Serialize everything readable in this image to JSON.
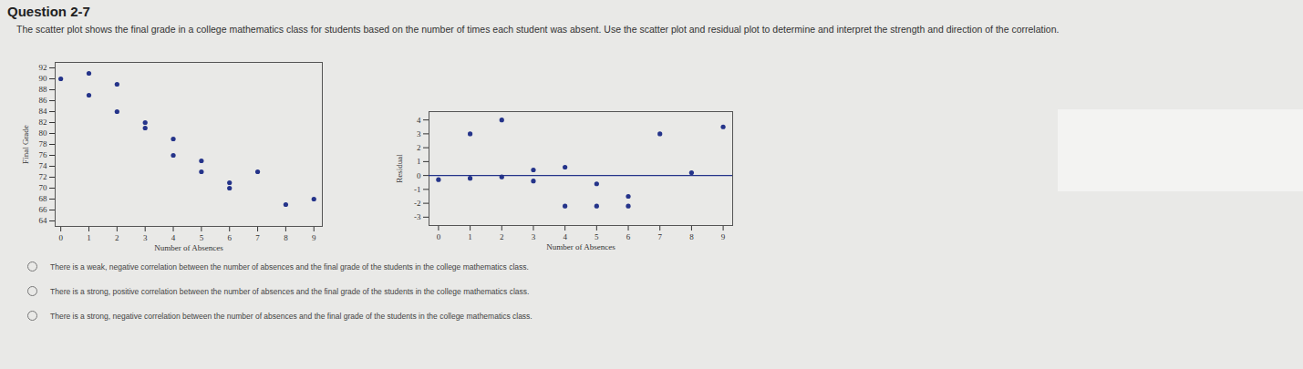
{
  "header": {
    "title": "Question 2-7"
  },
  "question": "The scatter plot shows the final grade in a college mathematics class for students based on the number of times each student was absent. Use the scatter plot and residual plot to determine and interpret the strength and direction of the correlation.",
  "chart_data": [
    {
      "type": "scatter",
      "x_label": "Number of Absences",
      "y_label": "Final Grade",
      "x": [
        0,
        1,
        1,
        2,
        2,
        3,
        3,
        4,
        4,
        5,
        5,
        6,
        6,
        7,
        8,
        9
      ],
      "values": [
        90,
        91,
        87,
        89,
        84,
        82,
        81,
        79,
        76,
        75,
        73,
        71,
        70,
        73,
        67,
        68
      ],
      "color": "#25348a",
      "marker": "circle",
      "xlim": [
        -0.2,
        9.3
      ],
      "ylim": [
        63,
        93
      ],
      "xticks": [
        0,
        1,
        2,
        3,
        4,
        5,
        6,
        7,
        8,
        9
      ],
      "yticks": [
        64,
        66,
        68,
        70,
        72,
        74,
        76,
        78,
        80,
        82,
        84,
        86,
        88,
        90,
        92
      ],
      "grid": false
    },
    {
      "type": "scatter",
      "x_label": "Number of Absences",
      "y_label": "Residual",
      "x": [
        0,
        1,
        1,
        2,
        2,
        3,
        3,
        4,
        4,
        5,
        5,
        6,
        6,
        7,
        8,
        9
      ],
      "values": [
        -0.3,
        3,
        -0.2,
        4,
        -0.1,
        0.4,
        -0.4,
        0.6,
        -2.2,
        -0.6,
        -2.2,
        -1.5,
        -2.2,
        3,
        0.2,
        3.5
      ],
      "color": "#25348a",
      "marker": "circle",
      "hline": 0,
      "xlim": [
        -0.3,
        9.3
      ],
      "ylim": [
        -3.6,
        4.6
      ],
      "xticks": [
        0,
        1,
        2,
        3,
        4,
        5,
        6,
        7,
        8,
        9
      ],
      "yticks": [
        -3,
        -2,
        -1,
        0,
        1,
        2,
        3,
        4
      ],
      "grid": false
    }
  ],
  "options": [
    "There is a weak, negative correlation between the number of absences and the final grade of the students in the college mathematics class.",
    "There is a strong, positive correlation between the number of absences and the final grade of the students in the college mathematics class.",
    "There is a strong, negative correlation between the number of absences and the final grade of the students in the college mathematics class."
  ]
}
